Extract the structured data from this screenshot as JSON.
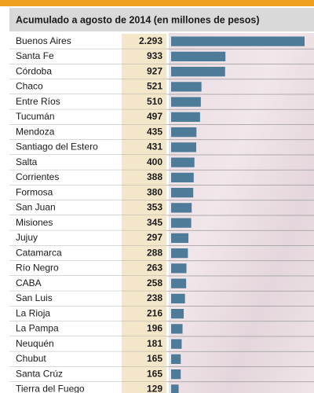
{
  "chart_data": {
    "type": "bar",
    "orientation": "horizontal",
    "title": "Acumulado a agosto de 2014 (en millones de pesos)",
    "categories": [
      "Buenos Aires",
      "Santa Fe",
      "Córdoba",
      "Chaco",
      "Entre Ríos",
      "Tucumán",
      "Mendoza",
      "Santiago del Estero",
      "Salta",
      "Corrientes",
      "Formosa",
      "San Juan",
      "Misiones",
      "Jujuy",
      "Catamarca",
      "Río Negro",
      "CABA",
      "San Luis",
      "La Rioja",
      "La Pampa",
      "Neuquén",
      "Chubut",
      "Santa Crúz",
      "Tierra del Fuego"
    ],
    "values": [
      2293,
      933,
      927,
      521,
      510,
      497,
      435,
      431,
      400,
      388,
      380,
      353,
      345,
      297,
      288,
      263,
      258,
      238,
      216,
      196,
      181,
      165,
      165,
      129
    ],
    "value_labels": [
      "2.293",
      "933",
      "927",
      "521",
      "510",
      "497",
      "435",
      "431",
      "400",
      "388",
      "380",
      "353",
      "345",
      "297",
      "288",
      "263",
      "258",
      "238",
      "216",
      "196",
      "181",
      "165",
      "165",
      "129"
    ],
    "color": "#4d7b98"
  }
}
